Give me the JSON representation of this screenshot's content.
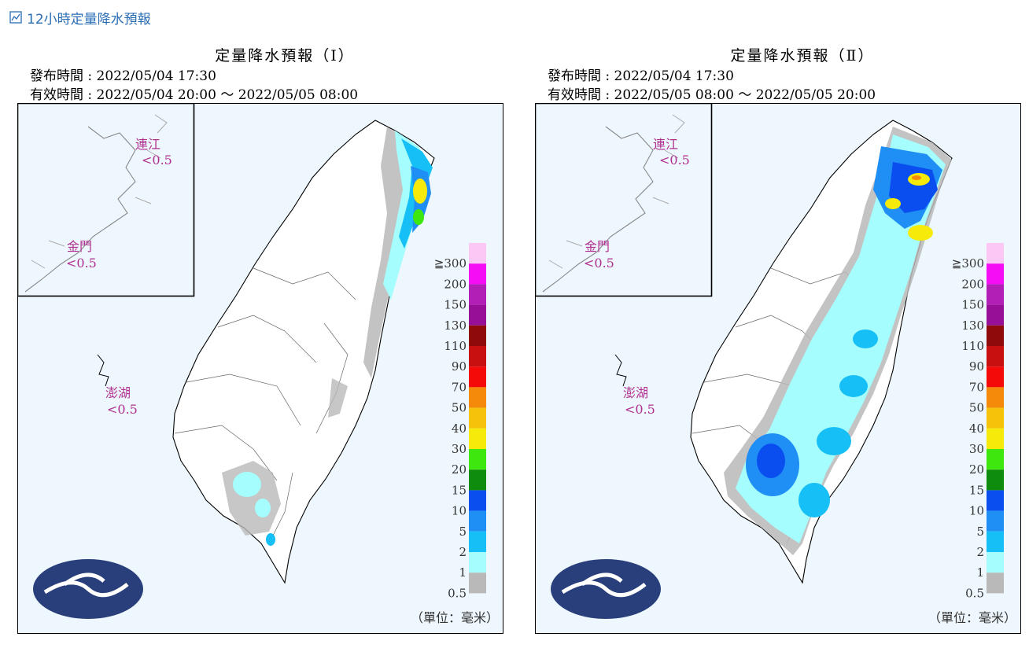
{
  "header": {
    "icon": "line-chart-icon",
    "title": "12小時定量降水預報"
  },
  "panels": [
    {
      "title": "定量降水預報（Ⅰ）",
      "issue_time": "發布時間 : 2022/05/04 17:30",
      "valid_time": "有效時間 : 2022/05/04 20:00 ～ 2022/05/05 08:00",
      "islands": [
        {
          "name": "連江",
          "value": "<0.5"
        },
        {
          "name": "金門",
          "value": "<0.5"
        },
        {
          "name": "澎湖",
          "value": "<0.5"
        }
      ]
    },
    {
      "title": "定量降水預報（Ⅱ）",
      "issue_time": "發布時間 : 2022/05/04 17:30",
      "valid_time": "有效時間 : 2022/05/05 08:00 ～ 2022/05/05 20:00",
      "islands": [
        {
          "name": "連江",
          "value": "<0.5"
        },
        {
          "name": "金門",
          "value": "<0.5"
        },
        {
          "name": "澎湖",
          "value": "<0.5"
        }
      ]
    }
  ],
  "legend": {
    "ticks": [
      "≧300",
      "200",
      "150",
      "130",
      "110",
      "90",
      "70",
      "50",
      "40",
      "30",
      "20",
      "15",
      "10",
      "5",
      "2",
      "1",
      "0.5"
    ],
    "colors": [
      "#fbc8f5",
      "#f50ef5",
      "#b11fb6",
      "#960f96",
      "#8f0b0b",
      "#c91010",
      "#f50a0a",
      "#f58a0a",
      "#f5c40a",
      "#f5ea0a",
      "#3ee80e",
      "#0e8c0e",
      "#0a4ef0",
      "#1f8ef5",
      "#16bff5",
      "#a5fdfd",
      "#b9b9b9"
    ],
    "unit": "（單位：毫米）"
  },
  "colors": {
    "sea": "#eef7fd",
    "header_blue": "#2a6db5",
    "logo_navy": "#283f7b"
  }
}
